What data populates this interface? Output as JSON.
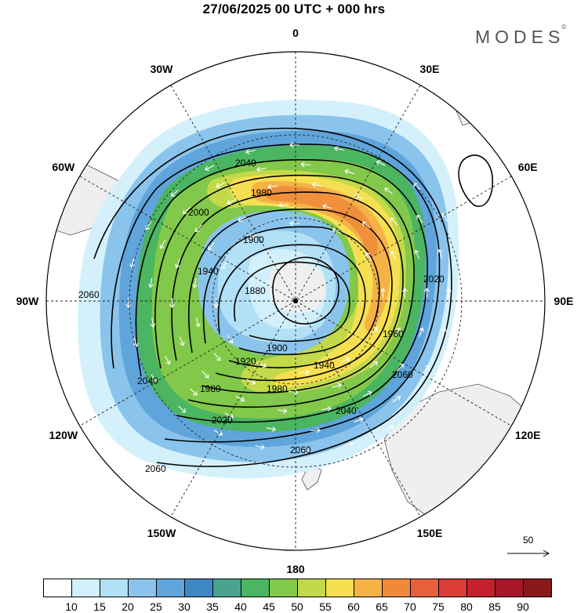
{
  "header": {
    "title": "27/06/2025  00 UTC  + 000 hrs",
    "brand": "MODES",
    "brand_mark": "©"
  },
  "map": {
    "projection": "south-polar-stereographic",
    "longitude_labels": [
      {
        "text": "0",
        "lon": 0
      },
      {
        "text": "30E",
        "lon": 30
      },
      {
        "text": "60E",
        "lon": 60
      },
      {
        "text": "90E",
        "lon": 90
      },
      {
        "text": "120E",
        "lon": 120
      },
      {
        "text": "150E",
        "lon": 150
      },
      {
        "text": "180",
        "lon": 180
      },
      {
        "text": "150W",
        "lon": -150
      },
      {
        "text": "120W",
        "lon": -120
      },
      {
        "text": "90W",
        "lon": -90
      },
      {
        "text": "60W",
        "lon": -60
      },
      {
        "text": "30W",
        "lon": -30
      }
    ],
    "contour_labels": [
      "1880",
      "1900",
      "1920",
      "1940",
      "1960",
      "1980",
      "2000",
      "2020",
      "2040",
      "2060"
    ],
    "reference_vector": "50",
    "icons": [
      "polar-grid",
      "wind-vector-arrow",
      "south-pole-marker"
    ]
  },
  "colorbar": {
    "labels": [
      "10",
      "15",
      "20",
      "25",
      "30",
      "35",
      "40",
      "45",
      "50",
      "55",
      "60",
      "65",
      "70",
      "75",
      "80",
      "85",
      "90"
    ],
    "colors": [
      "#ffffff",
      "#d2f0fb",
      "#b2e0f6",
      "#8ac4ec",
      "#5fa5db",
      "#3f86c4",
      "#4aa38f",
      "#4bb561",
      "#82c84a",
      "#c3d94a",
      "#f6e052",
      "#f6b247",
      "#f08a3a",
      "#e8603a",
      "#dc3c33",
      "#c5202c",
      "#a8162a",
      "#8a1a1a"
    ]
  }
}
